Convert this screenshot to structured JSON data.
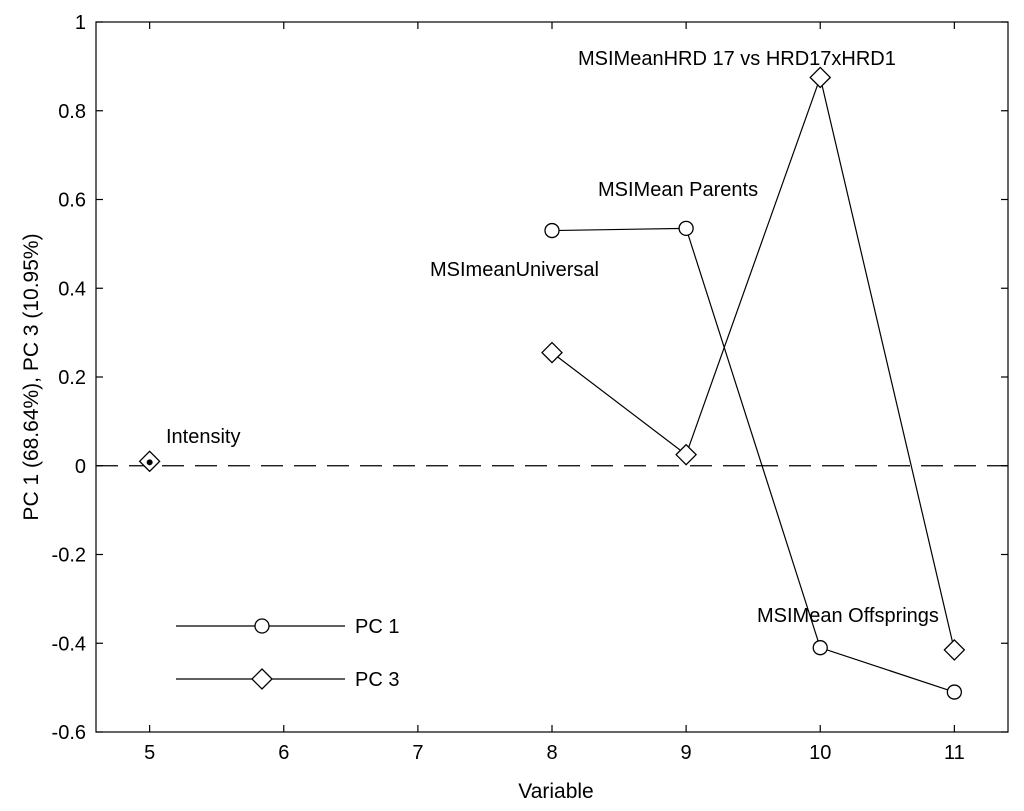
{
  "chart_data": {
    "type": "line",
    "xlabel": "Variable",
    "ylabel": "PC 1 (68.64%), PC 3 (10.95%)",
    "xlim": [
      4.6,
      11.4
    ],
    "ylim": [
      -0.6,
      1.0
    ],
    "x_ticks": [
      5,
      6,
      7,
      8,
      9,
      10,
      11
    ],
    "y_ticks": [
      -0.6,
      -0.4,
      -0.2,
      0,
      0.2,
      0.4,
      0.6,
      0.8,
      1
    ],
    "grid": false,
    "legend_position": "bottom-left",
    "reference_line": {
      "y": 0,
      "style": "dashed"
    },
    "series": [
      {
        "name": "PC 1",
        "marker": "circle",
        "color": "#000000",
        "points": [
          {
            "x": 5,
            "y": 0.01
          },
          {
            "x": 8,
            "y": 0.53
          },
          {
            "x": 9,
            "y": 0.535
          },
          {
            "x": 10,
            "y": -0.41
          },
          {
            "x": 11,
            "y": -0.51
          }
        ]
      },
      {
        "name": "PC 3",
        "marker": "diamond",
        "color": "#000000",
        "points": [
          {
            "x": 5,
            "y": 0.01
          },
          {
            "x": 8,
            "y": 0.255
          },
          {
            "x": 9,
            "y": 0.025
          },
          {
            "x": 10,
            "y": 0.875
          },
          {
            "x": 11,
            "y": -0.415
          }
        ]
      }
    ],
    "annotations": [
      {
        "text": "Intensity",
        "x": 5,
        "y": 0.01
      },
      {
        "text": "MSImeanUniversal",
        "x": 8,
        "y": 0.53
      },
      {
        "text": "MSIMean Parents",
        "x": 9,
        "y": 0.535
      },
      {
        "text": "MSIMeanHRD 17 vs HRD17xHRD1",
        "x": 10,
        "y": 0.875
      },
      {
        "text": "MSIMean Offsprings",
        "x": 11,
        "y": -0.41
      }
    ]
  }
}
